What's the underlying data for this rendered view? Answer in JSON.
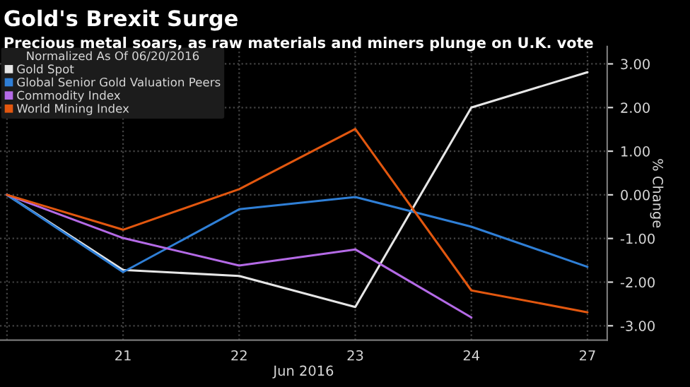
{
  "chart_data": {
    "type": "line",
    "title": "Gold's Brexit Surge",
    "subtitle": "Precious metal soars, as raw materials and miners plunge on U.K. vote",
    "xlabel": "Jun 2016",
    "ylabel": "% Change",
    "legend_title": "Normalized As Of 06/20/2016",
    "categories": [
      null,
      "21",
      "22",
      "23",
      "24",
      "27"
    ],
    "series": [
      {
        "name": "Gold Spot",
        "color": "#e6e6e6",
        "values": [
          0,
          -1.72,
          -1.86,
          -2.57,
          2.0,
          2.81
        ]
      },
      {
        "name": "Global Senior Gold Valuation Peers",
        "color": "#2f7fd6",
        "values": [
          0,
          -1.77,
          -0.33,
          -0.05,
          -0.73,
          -1.65
        ]
      },
      {
        "name": "Commodity Index",
        "color": "#b46ae6",
        "values": [
          0,
          -0.99,
          -1.62,
          -1.25,
          -2.81,
          null
        ]
      },
      {
        "name": "World Mining Index",
        "color": "#e2570f",
        "values": [
          0,
          -0.8,
          0.13,
          1.51,
          -2.19,
          -2.69
        ]
      }
    ],
    "ylim": [
      -3.33,
      3.4
    ],
    "yticks": [
      {
        "value": 3,
        "label": "3.00"
      },
      {
        "value": 2,
        "label": "2.00"
      },
      {
        "value": 1,
        "label": "1.00"
      },
      {
        "value": 0,
        "label": "0.00"
      },
      {
        "value": -1,
        "label": "-1.00"
      },
      {
        "value": -2,
        "label": "-2.00"
      },
      {
        "value": -3,
        "label": "-3.00"
      }
    ],
    "grid": true,
    "legend": "top left",
    "marker": "none",
    "line_style": "solid"
  }
}
